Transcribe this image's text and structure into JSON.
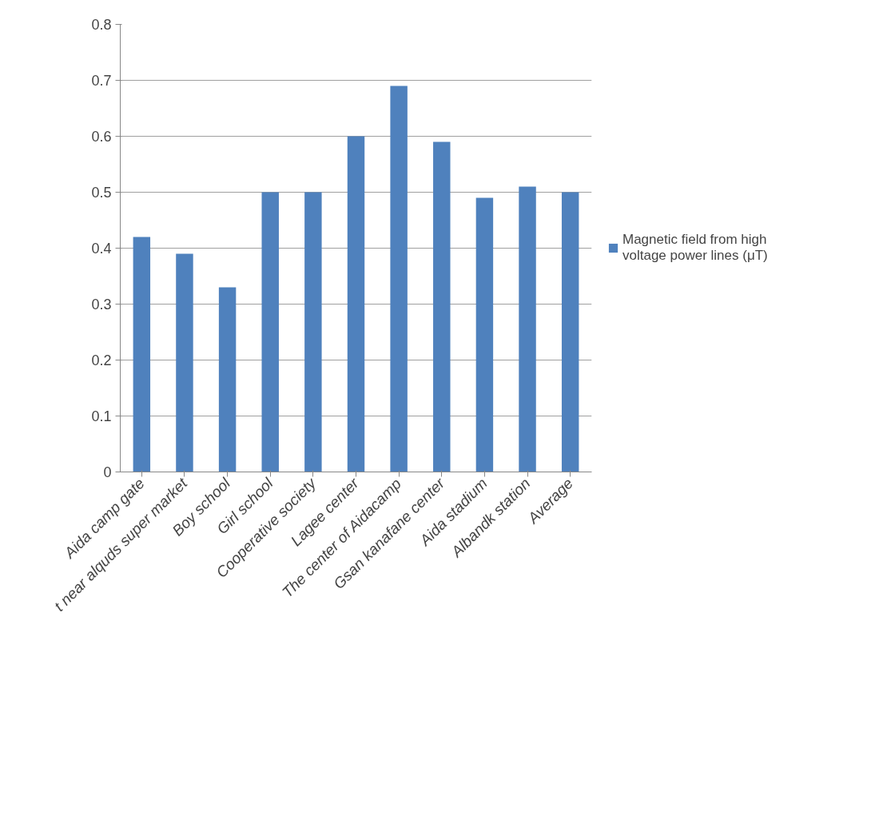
{
  "chart_data": {
    "type": "bar",
    "categories": [
      "Aida camp gate",
      "t near alquds super market",
      "Boy school",
      "Girl school",
      "Cooperative society",
      "Lagee center",
      "The center of Aidacamp",
      "Gsan kanafane center",
      "Aida stadium",
      "Albandk station",
      "Average"
    ],
    "series": [
      {
        "name": "Magnetic field from high voltage power lines (μT)",
        "color": "#4f81bd",
        "values": [
          0.42,
          0.39,
          0.33,
          0.5,
          0.5,
          0.6,
          0.69,
          0.59,
          0.49,
          0.51,
          0.5
        ]
      }
    ],
    "ylim": [
      0,
      0.8
    ],
    "yticks": [
      0,
      0.1,
      0.2,
      0.3,
      0.4,
      0.5,
      0.6,
      0.7,
      0.8
    ],
    "grid": "y",
    "legend": "right"
  }
}
